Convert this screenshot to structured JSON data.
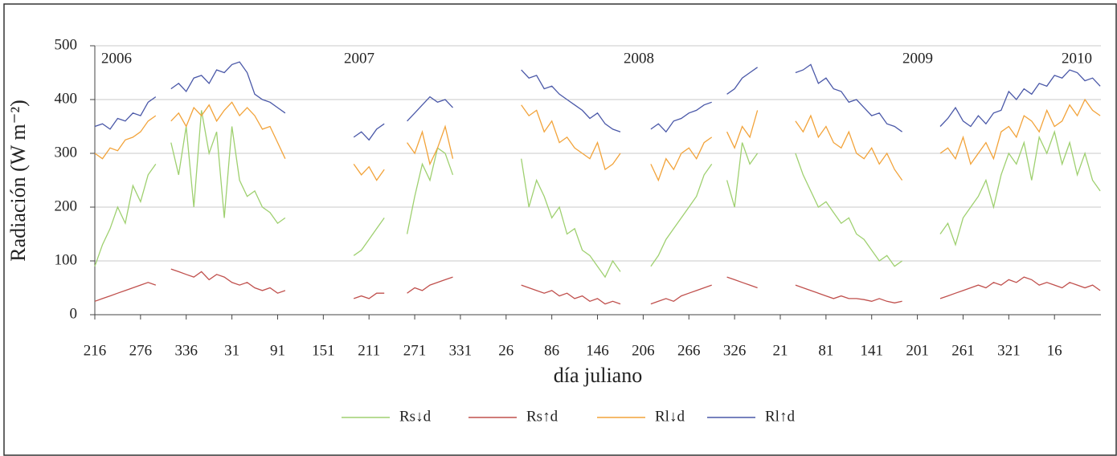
{
  "chart_data": {
    "type": "line",
    "y_label": "Radiación (W m⁻²)",
    "x_label": "día juliano",
    "annotations": [
      "2006",
      "2007",
      "2008",
      "2009",
      "2010"
    ],
    "xlim": [
      0,
      1321
    ],
    "ylim": [
      0,
      500
    ],
    "yticks": [
      0,
      100,
      200,
      300,
      400,
      500
    ],
    "grid": true,
    "xticks": [
      {
        "value": 0,
        "label": "216"
      },
      {
        "value": 60,
        "label": "276"
      },
      {
        "value": 120,
        "label": "336"
      },
      {
        "value": 180,
        "label": "31"
      },
      {
        "value": 240,
        "label": "91"
      },
      {
        "value": 300,
        "label": "151"
      },
      {
        "value": 360,
        "label": "211"
      },
      {
        "value": 420,
        "label": "271"
      },
      {
        "value": 480,
        "label": "331"
      },
      {
        "value": 540,
        "label": "26"
      },
      {
        "value": 600,
        "label": "86"
      },
      {
        "value": 660,
        "label": "146"
      },
      {
        "value": 720,
        "label": "206"
      },
      {
        "value": 780,
        "label": "266"
      },
      {
        "value": 840,
        "label": "326"
      },
      {
        "value": 900,
        "label": "21"
      },
      {
        "value": 960,
        "label": "81"
      },
      {
        "value": 1020,
        "label": "141"
      },
      {
        "value": 1080,
        "label": "201"
      },
      {
        "value": 1140,
        "label": "261"
      },
      {
        "value": 1200,
        "label": "321"
      },
      {
        "value": 1260,
        "label": "16"
      }
    ],
    "x": [
      0,
      10,
      20,
      30,
      40,
      50,
      60,
      70,
      80,
      90,
      100,
      110,
      120,
      130,
      140,
      150,
      160,
      170,
      180,
      190,
      200,
      210,
      220,
      230,
      240,
      250,
      260,
      270,
      280,
      290,
      300,
      310,
      320,
      330,
      340,
      350,
      360,
      370,
      380,
      390,
      400,
      410,
      420,
      430,
      440,
      450,
      460,
      470,
      480,
      490,
      500,
      510,
      520,
      530,
      540,
      550,
      560,
      570,
      580,
      590,
      600,
      610,
      620,
      630,
      640,
      650,
      660,
      670,
      680,
      690,
      700,
      710,
      720,
      730,
      740,
      750,
      760,
      770,
      780,
      790,
      800,
      810,
      820,
      830,
      840,
      850,
      860,
      870,
      880,
      890,
      900,
      910,
      920,
      930,
      940,
      950,
      960,
      970,
      980,
      990,
      1000,
      1010,
      1020,
      1030,
      1040,
      1050,
      1060,
      1070,
      1080,
      1090,
      1100,
      1110,
      1120,
      1130,
      1140,
      1150,
      1160,
      1170,
      1180,
      1190,
      1200,
      1210,
      1220,
      1230,
      1240,
      1250,
      1260,
      1270,
      1280,
      1290,
      1300,
      1310,
      1320
    ],
    "series": [
      {
        "name": "Rs↓d",
        "color": "#9fd070",
        "values": [
          90,
          130,
          160,
          200,
          170,
          240,
          210,
          260,
          280,
          null,
          320,
          260,
          350,
          200,
          380,
          300,
          340,
          180,
          350,
          250,
          220,
          230,
          200,
          190,
          170,
          180,
          null,
          null,
          null,
          null,
          null,
          null,
          null,
          null,
          110,
          120,
          140,
          160,
          180,
          null,
          null,
          150,
          220,
          280,
          250,
          310,
          300,
          260,
          null,
          null,
          null,
          null,
          null,
          null,
          null,
          null,
          290,
          200,
          250,
          220,
          180,
          200,
          150,
          160,
          120,
          110,
          90,
          70,
          100,
          80,
          null,
          null,
          null,
          90,
          110,
          140,
          160,
          180,
          200,
          220,
          260,
          280,
          null,
          250,
          200,
          320,
          280,
          300,
          null,
          null,
          null,
          null,
          300,
          260,
          230,
          200,
          210,
          190,
          170,
          180,
          150,
          140,
          120,
          100,
          110,
          90,
          100,
          null,
          null,
          null,
          null,
          150,
          170,
          130,
          180,
          200,
          220,
          250,
          200,
          260,
          300,
          280,
          320,
          250,
          330,
          300,
          340,
          280,
          320,
          260,
          300,
          250,
          230
        ]
      },
      {
        "name": "Rs↑d",
        "color": "#c0504d",
        "values": [
          25,
          30,
          35,
          40,
          45,
          50,
          55,
          60,
          55,
          null,
          85,
          80,
          75,
          70,
          80,
          65,
          75,
          70,
          60,
          55,
          60,
          50,
          45,
          50,
          40,
          45,
          null,
          null,
          null,
          null,
          null,
          null,
          null,
          null,
          30,
          35,
          30,
          40,
          40,
          null,
          null,
          40,
          50,
          45,
          55,
          60,
          65,
          70,
          null,
          null,
          null,
          null,
          null,
          null,
          null,
          null,
          55,
          50,
          45,
          40,
          45,
          35,
          40,
          30,
          35,
          25,
          30,
          20,
          25,
          20,
          null,
          null,
          null,
          20,
          25,
          30,
          25,
          35,
          40,
          45,
          50,
          55,
          null,
          70,
          65,
          60,
          55,
          50,
          null,
          null,
          null,
          null,
          55,
          50,
          45,
          40,
          35,
          30,
          35,
          30,
          30,
          28,
          25,
          30,
          25,
          22,
          25,
          null,
          null,
          null,
          null,
          30,
          35,
          40,
          45,
          50,
          55,
          50,
          60,
          55,
          65,
          60,
          70,
          65,
          55,
          60,
          55,
          50,
          60,
          55,
          50,
          55,
          45
        ]
      },
      {
        "name": "Rl↓d",
        "color": "#f2a33a",
        "values": [
          300,
          290,
          310,
          305,
          325,
          330,
          340,
          360,
          370,
          null,
          360,
          375,
          350,
          385,
          370,
          390,
          360,
          380,
          395,
          370,
          385,
          370,
          345,
          350,
          320,
          290,
          null,
          null,
          null,
          null,
          null,
          null,
          null,
          null,
          280,
          260,
          275,
          250,
          270,
          null,
          null,
          320,
          300,
          340,
          280,
          310,
          350,
          290,
          null,
          null,
          null,
          null,
          null,
          null,
          null,
          null,
          390,
          370,
          380,
          340,
          360,
          320,
          330,
          310,
          300,
          290,
          320,
          270,
          280,
          300,
          null,
          null,
          null,
          280,
          250,
          290,
          270,
          300,
          310,
          290,
          320,
          330,
          null,
          340,
          310,
          350,
          330,
          380,
          null,
          null,
          null,
          null,
          360,
          340,
          370,
          330,
          350,
          320,
          310,
          340,
          300,
          290,
          310,
          280,
          300,
          270,
          250,
          null,
          null,
          null,
          null,
          300,
          310,
          290,
          330,
          280,
          300,
          320,
          290,
          340,
          350,
          330,
          370,
          360,
          340,
          380,
          350,
          360,
          390,
          370,
          400,
          380,
          370
        ]
      },
      {
        "name": "Rl↑d",
        "color": "#4a58a8",
        "values": [
          350,
          355,
          345,
          365,
          360,
          375,
          370,
          395,
          405,
          null,
          420,
          430,
          415,
          440,
          445,
          430,
          455,
          450,
          465,
          470,
          450,
          410,
          400,
          395,
          385,
          375,
          null,
          null,
          null,
          null,
          null,
          null,
          null,
          null,
          330,
          340,
          325,
          345,
          355,
          null,
          null,
          360,
          375,
          390,
          405,
          395,
          400,
          385,
          null,
          null,
          null,
          null,
          null,
          null,
          null,
          null,
          455,
          440,
          445,
          420,
          425,
          410,
          400,
          390,
          380,
          365,
          375,
          355,
          345,
          340,
          null,
          null,
          null,
          345,
          355,
          340,
          360,
          365,
          375,
          380,
          390,
          395,
          null,
          410,
          420,
          440,
          450,
          460,
          null,
          null,
          null,
          null,
          450,
          455,
          465,
          430,
          440,
          420,
          415,
          395,
          400,
          385,
          370,
          375,
          355,
          350,
          340,
          null,
          null,
          null,
          null,
          350,
          365,
          385,
          360,
          350,
          370,
          355,
          375,
          380,
          415,
          400,
          420,
          410,
          430,
          425,
          445,
          440,
          455,
          450,
          435,
          440,
          425
        ]
      }
    ]
  }
}
